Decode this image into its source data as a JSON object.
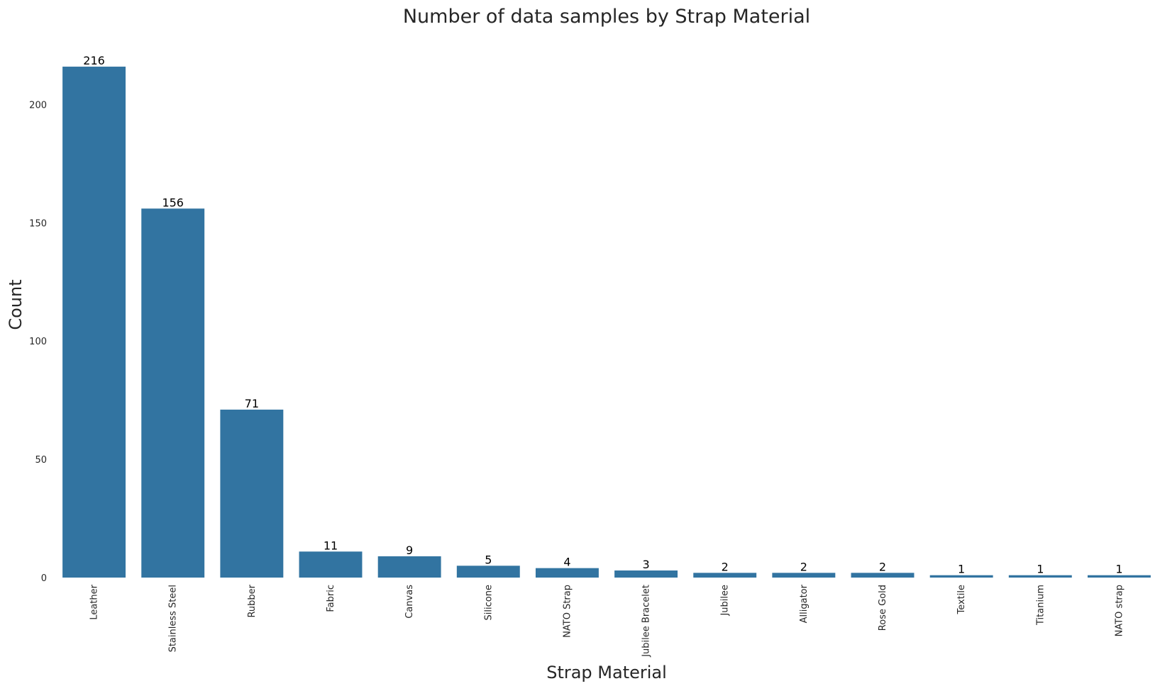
{
  "chart_data": {
    "type": "bar",
    "title": "Number of data samples by Strap Material",
    "xlabel": "Strap Material",
    "ylabel": "Count",
    "categories": [
      "Leather",
      "Stainless Steel",
      "Rubber",
      "Fabric",
      "Canvas",
      "Silicone",
      "NATO Strap",
      "Jubilee Bracelet",
      "Jubilee",
      "Alligator",
      "Rose Gold",
      "Textile",
      "Titanium",
      "NATO strap"
    ],
    "values": [
      216,
      156,
      71,
      11,
      9,
      5,
      4,
      3,
      2,
      2,
      2,
      1,
      1,
      1
    ],
    "ylim": [
      0,
      226.8
    ],
    "yticks": [
      0,
      50,
      100,
      150,
      200
    ],
    "grid": false,
    "bar_color": "#3274a1"
  }
}
